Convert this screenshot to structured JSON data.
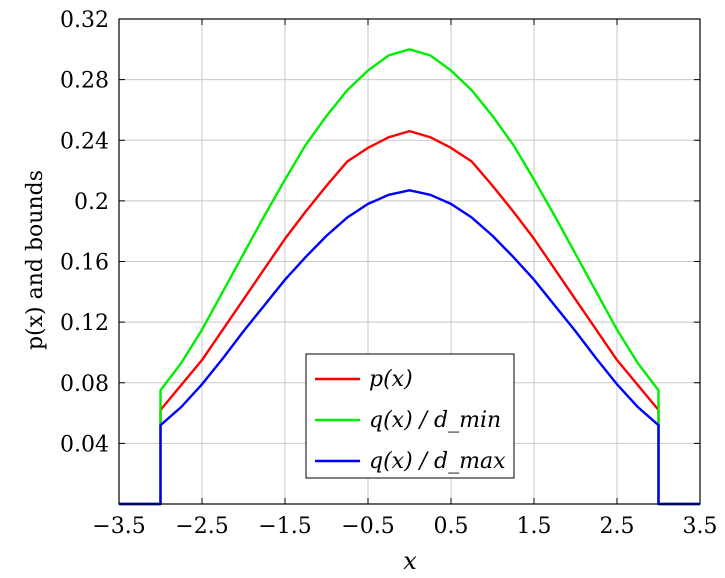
{
  "chart_data": {
    "type": "line",
    "xlabel": "x",
    "ylabel": "p(x) and bounds",
    "xlim": [
      -3.5,
      3.5
    ],
    "ylim": [
      0,
      0.32
    ],
    "xticks": [
      "−3.5",
      "−2.5",
      "−1.5",
      "−0.5",
      "0.5",
      "1.5",
      "2.5",
      "3.5"
    ],
    "xtick_values": [
      -3.5,
      -2.5,
      -1.5,
      -0.5,
      0.5,
      1.5,
      2.5,
      3.5
    ],
    "yticks": [
      "0.04",
      "0.08",
      "0.12",
      "0.16",
      "0.2",
      "0.24",
      "0.28",
      "0.32"
    ],
    "ytick_values": [
      0.04,
      0.08,
      0.12,
      0.16,
      0.2,
      0.24,
      0.28,
      0.32
    ],
    "grid": true,
    "legend_position": "lower-center",
    "series": [
      {
        "name": "p(x)",
        "color": "#ff0000",
        "points": [
          [
            -3.5,
            0
          ],
          [
            -3,
            0
          ],
          [
            -3,
            0.062
          ],
          [
            -2.5,
            0.095
          ],
          [
            -2,
            0.135
          ],
          [
            -1.5,
            0.175
          ],
          [
            -1.25,
            0.193
          ],
          [
            -1,
            0.21
          ],
          [
            -0.75,
            0.226
          ],
          [
            -0.5,
            0.235
          ],
          [
            -0.25,
            0.242
          ],
          [
            0,
            0.246
          ],
          [
            0.25,
            0.242
          ],
          [
            0.5,
            0.235
          ],
          [
            0.75,
            0.226
          ],
          [
            1,
            0.21
          ],
          [
            1.25,
            0.193
          ],
          [
            1.5,
            0.175
          ],
          [
            2,
            0.135
          ],
          [
            2.5,
            0.095
          ],
          [
            3,
            0.062
          ],
          [
            3,
            0
          ],
          [
            3.5,
            0
          ]
        ]
      },
      {
        "name": "q(x) / d_min",
        "color": "#00ee00",
        "points": [
          [
            -3.5,
            0
          ],
          [
            -3,
            0
          ],
          [
            -3,
            0.075
          ],
          [
            -2.75,
            0.093
          ],
          [
            -2.5,
            0.115
          ],
          [
            -2.25,
            0.14
          ],
          [
            -2,
            0.165
          ],
          [
            -1.75,
            0.19
          ],
          [
            -1.5,
            0.214
          ],
          [
            -1.25,
            0.237
          ],
          [
            -1,
            0.256
          ],
          [
            -0.75,
            0.273
          ],
          [
            -0.5,
            0.286
          ],
          [
            -0.25,
            0.296
          ],
          [
            0,
            0.3
          ],
          [
            0.25,
            0.296
          ],
          [
            0.5,
            0.286
          ],
          [
            0.75,
            0.273
          ],
          [
            1,
            0.256
          ],
          [
            1.25,
            0.237
          ],
          [
            1.5,
            0.214
          ],
          [
            1.75,
            0.19
          ],
          [
            2,
            0.165
          ],
          [
            2.25,
            0.14
          ],
          [
            2.5,
            0.115
          ],
          [
            2.75,
            0.093
          ],
          [
            3,
            0.075
          ],
          [
            3,
            0
          ],
          [
            3.5,
            0
          ]
        ]
      },
      {
        "name": "q(x) / d_max",
        "color": "#0000ff",
        "points": [
          [
            -3.5,
            0
          ],
          [
            -3,
            0
          ],
          [
            -3,
            0.052
          ],
          [
            -2.75,
            0.064
          ],
          [
            -2.5,
            0.079
          ],
          [
            -2.25,
            0.096
          ],
          [
            -2,
            0.114
          ],
          [
            -1.75,
            0.131
          ],
          [
            -1.5,
            0.148
          ],
          [
            -1.25,
            0.163
          ],
          [
            -1,
            0.177
          ],
          [
            -0.75,
            0.189
          ],
          [
            -0.5,
            0.198
          ],
          [
            -0.25,
            0.204
          ],
          [
            0,
            0.207
          ],
          [
            0.25,
            0.204
          ],
          [
            0.5,
            0.198
          ],
          [
            0.75,
            0.189
          ],
          [
            1,
            0.177
          ],
          [
            1.25,
            0.163
          ],
          [
            1.5,
            0.148
          ],
          [
            1.75,
            0.131
          ],
          [
            2,
            0.114
          ],
          [
            2.25,
            0.096
          ],
          [
            2.5,
            0.079
          ],
          [
            2.75,
            0.064
          ],
          [
            3,
            0.052
          ],
          [
            3,
            0
          ],
          [
            3.5,
            0
          ]
        ]
      }
    ]
  }
}
